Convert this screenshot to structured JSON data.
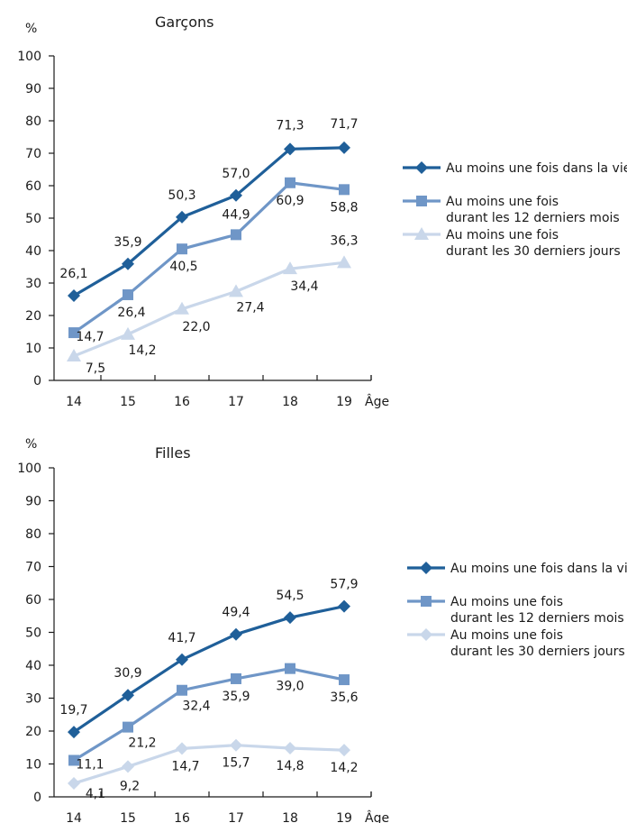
{
  "colors": {
    "vie": "#1f5f99",
    "mois12": "#6f96c7",
    "jours30": "#c9d7ea",
    "axis": "#1a1a1a"
  },
  "chart_data": [
    {
      "type": "line",
      "title": "Garçons",
      "ylabel": "%",
      "xlabel": "Âge",
      "ylim": [
        0,
        100
      ],
      "yticks": [
        0,
        10,
        20,
        30,
        40,
        50,
        60,
        70,
        80,
        90,
        100
      ],
      "categories": [
        "14",
        "15",
        "16",
        "17",
        "18",
        "19"
      ],
      "grid": false,
      "legend_position": "right",
      "series": [
        {
          "key": "vie",
          "name": "Au moins une fois dans la vie",
          "marker": "diamond",
          "values": [
            26.1,
            35.9,
            50.3,
            57.0,
            71.3,
            71.7
          ],
          "labels": [
            "26,1",
            "35,9",
            "50,3",
            "57,0",
            "71,3",
            "71,7"
          ]
        },
        {
          "key": "mois12",
          "name": "Au moins une fois durant les 12 derniers mois",
          "marker": "square",
          "name_lines": [
            "Au moins une fois",
            "durant les 12 derniers mois"
          ],
          "values": [
            14.7,
            26.4,
            40.5,
            44.9,
            60.9,
            58.8
          ],
          "labels": [
            "14,7",
            "26,4",
            "40,5",
            "44,9",
            "60,9",
            "58,8"
          ]
        },
        {
          "key": "jours30",
          "name": "Au moins une fois durant les 30 derniers jours",
          "marker": "triangle",
          "name_lines": [
            "Au moins une fois",
            "durant les 30 derniers jours"
          ],
          "values": [
            7.5,
            14.2,
            22.0,
            27.4,
            34.4,
            36.3
          ],
          "labels": [
            "7,5",
            "14,2",
            "22,0",
            "27,4",
            "34,4",
            "36,3"
          ]
        }
      ]
    },
    {
      "type": "line",
      "title": "Filles",
      "ylabel": "%",
      "xlabel": "Âge",
      "ylim": [
        0,
        100
      ],
      "yticks": [
        0,
        10,
        20,
        30,
        40,
        50,
        60,
        70,
        80,
        90,
        100
      ],
      "categories": [
        "14",
        "15",
        "16",
        "17",
        "18",
        "19"
      ],
      "grid": false,
      "legend_position": "right",
      "series": [
        {
          "key": "vie",
          "name": "Au moins une fois dans la vie",
          "marker": "diamond",
          "values": [
            19.7,
            30.9,
            41.7,
            49.4,
            54.5,
            57.9
          ],
          "labels": [
            "19,7",
            "30,9",
            "41,7",
            "49,4",
            "54,5",
            "57,9"
          ]
        },
        {
          "key": "mois12",
          "name": "Au moins une fois durant les 12 derniers mois",
          "marker": "square",
          "name_lines": [
            "Au moins une fois",
            "durant les 12 derniers mois"
          ],
          "values": [
            11.1,
            21.2,
            32.4,
            35.9,
            39.0,
            35.6
          ],
          "labels": [
            "11,1",
            "21,2",
            "32,4",
            "35,9",
            "39,0",
            "35,6"
          ]
        },
        {
          "key": "jours30",
          "name": "Au moins une fois durant les 30 derniers jours",
          "marker": "diamond",
          "name_lines": [
            "Au moins une fois",
            "durant les 30 derniers jours"
          ],
          "values": [
            4.1,
            9.2,
            14.7,
            15.7,
            14.8,
            14.2
          ],
          "labels": [
            "4,1",
            "9,2",
            "14,7",
            "15,7",
            "14,8",
            "14,2"
          ]
        }
      ]
    }
  ]
}
